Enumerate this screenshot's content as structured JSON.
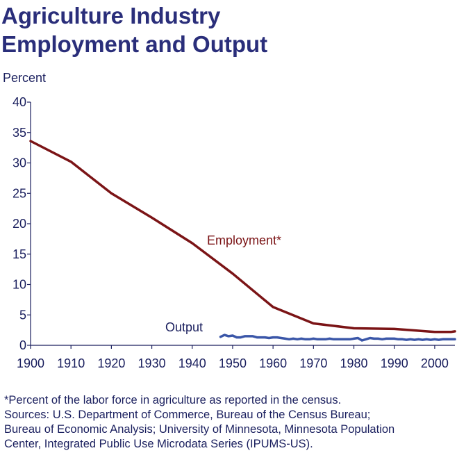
{
  "title": [
    "Agriculture Industry",
    "Employment and Output"
  ],
  "footnote": [
    "*Percent of the labor force in agriculture as reported in the census.",
    "Sources: U.S.  Department of Commerce, Bureau of the Census Bureau;",
    "Bureau of Economic Analysis; University of Minnesota, Minnesota Population",
    "Center, Integrated Public Use Microdata Series (IPUMS-US)."
  ],
  "colors": {
    "title": "#2a2e7a",
    "text": "#1a1f5e",
    "employment": "#7b1416",
    "output": "#3a56a8"
  },
  "chart_data": {
    "type": "line",
    "ylabel": "Percent",
    "xlabel": "",
    "xlim": [
      1900,
      2005
    ],
    "ylim": [
      0,
      40
    ],
    "x_ticks": [
      1900,
      1910,
      1920,
      1930,
      1940,
      1950,
      1960,
      1970,
      1980,
      1990,
      2000
    ],
    "y_ticks": [
      0,
      5,
      10,
      15,
      20,
      25,
      30,
      35,
      40
    ],
    "grid": false,
    "legend": "none",
    "series": [
      {
        "name": "Employment*",
        "x": [
          1900,
          1910,
          1920,
          1930,
          1940,
          1950,
          1960,
          1970,
          1980,
          1990,
          2000,
          2004,
          2005
        ],
        "values": [
          33.6,
          30.2,
          25.0,
          21.0,
          16.8,
          11.8,
          6.3,
          3.6,
          2.8,
          2.7,
          2.2,
          2.2,
          2.3
        ]
      },
      {
        "name": "Output",
        "x": [
          1947,
          1948,
          1949,
          1950,
          1951,
          1952,
          1953,
          1954,
          1955,
          1956,
          1957,
          1958,
          1959,
          1960,
          1961,
          1962,
          1963,
          1964,
          1965,
          1966,
          1967,
          1968,
          1969,
          1970,
          1971,
          1972,
          1973,
          1974,
          1975,
          1976,
          1977,
          1978,
          1979,
          1980,
          1981,
          1982,
          1983,
          1984,
          1985,
          1986,
          1987,
          1988,
          1989,
          1990,
          1991,
          1992,
          1993,
          1994,
          1995,
          1996,
          1997,
          1998,
          1999,
          2000,
          2001,
          2002,
          2003,
          2004,
          2005
        ],
        "values": [
          1.4,
          1.7,
          1.5,
          1.6,
          1.3,
          1.3,
          1.5,
          1.5,
          1.5,
          1.3,
          1.3,
          1.3,
          1.2,
          1.3,
          1.3,
          1.2,
          1.1,
          1.0,
          1.1,
          1.0,
          1.1,
          1.0,
          1.0,
          1.1,
          1.0,
          1.0,
          1.0,
          1.1,
          1.0,
          1.0,
          1.0,
          1.0,
          1.0,
          1.1,
          1.2,
          0.8,
          1.0,
          1.2,
          1.1,
          1.1,
          1.0,
          1.1,
          1.1,
          1.1,
          1.0,
          1.0,
          0.9,
          1.0,
          0.9,
          1.0,
          0.9,
          1.0,
          0.9,
          1.0,
          0.9,
          1.0,
          1.0,
          1.0,
          1.0
        ]
      }
    ],
    "annotations": [
      {
        "text": "Employment*",
        "series": "Employment*"
      },
      {
        "text": "Output",
        "series": "Output"
      }
    ]
  }
}
